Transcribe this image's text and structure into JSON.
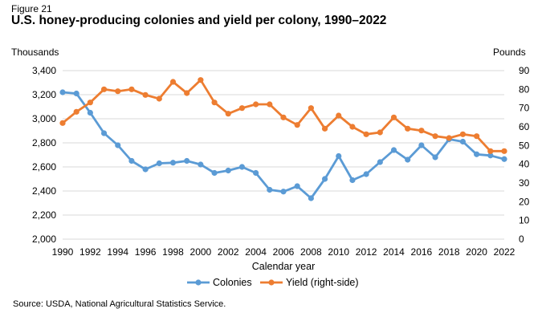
{
  "figure_label": "Figure 21",
  "title": "U.S. honey-producing colonies and yield per colony, 1990–2022",
  "source": "Source: USDA, National Agricultural Statistics Service.",
  "chart_data": {
    "type": "line",
    "title": "U.S. honey-producing colonies and yield per colony, 1990–2022",
    "xlabel": "Calendar year",
    "ylabel_left": "Thousands",
    "ylabel_right": "Pounds",
    "x": [
      1990,
      1991,
      1992,
      1993,
      1994,
      1995,
      1996,
      1997,
      1998,
      1999,
      2000,
      2001,
      2002,
      2003,
      2004,
      2005,
      2006,
      2007,
      2008,
      2009,
      2010,
      2011,
      2012,
      2013,
      2014,
      2015,
      2016,
      2017,
      2018,
      2019,
      2020,
      2021,
      2022
    ],
    "x_tick_labels": [
      "1990",
      "1992",
      "1994",
      "1996",
      "1998",
      "2000",
      "2002",
      "2004",
      "2006",
      "2008",
      "2010",
      "2012",
      "2014",
      "2016",
      "2018",
      "2020",
      "2022"
    ],
    "ylim_left": [
      2000,
      3400
    ],
    "yticks_left": [
      "2,000",
      "2,200",
      "2,400",
      "2,600",
      "2,800",
      "3,000",
      "3,200",
      "3,400"
    ],
    "ylim_right": [
      0,
      90
    ],
    "yticks_right": [
      "0",
      "10",
      "20",
      "30",
      "40",
      "50",
      "60",
      "70",
      "80",
      "90"
    ],
    "grid": "horizontal",
    "legend": "bottom",
    "series": [
      {
        "name": "Colonies",
        "axis": "left",
        "color": "#5B9BD5",
        "values": [
          3220,
          3210,
          3050,
          2880,
          2780,
          2650,
          2580,
          2630,
          2635,
          2650,
          2620,
          2550,
          2570,
          2600,
          2550,
          2410,
          2395,
          2440,
          2340,
          2500,
          2690,
          2490,
          2540,
          2640,
          2740,
          2660,
          2780,
          2680,
          2830,
          2810,
          2705,
          2695,
          2665
        ]
      },
      {
        "name": "Yield (right-side)",
        "axis": "right",
        "color": "#ED7D31",
        "values": [
          62,
          68,
          73,
          80,
          79,
          80,
          77,
          75,
          84,
          78,
          85,
          73,
          67,
          70,
          72,
          72,
          65,
          61,
          70,
          59,
          66,
          60,
          56,
          57,
          65,
          59,
          58,
          55,
          54,
          56,
          55,
          47,
          47
        ]
      }
    ]
  }
}
